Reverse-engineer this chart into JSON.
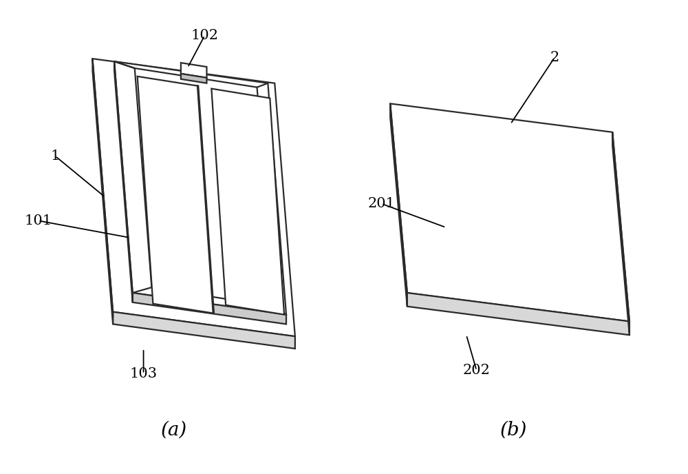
{
  "background_color": "#ffffff",
  "line_color": "#2a2a2a",
  "line_width": 1.6,
  "label_fontsize": 15,
  "caption_fontsize": 20,
  "fig_width": 10.0,
  "fig_height": 6.88
}
